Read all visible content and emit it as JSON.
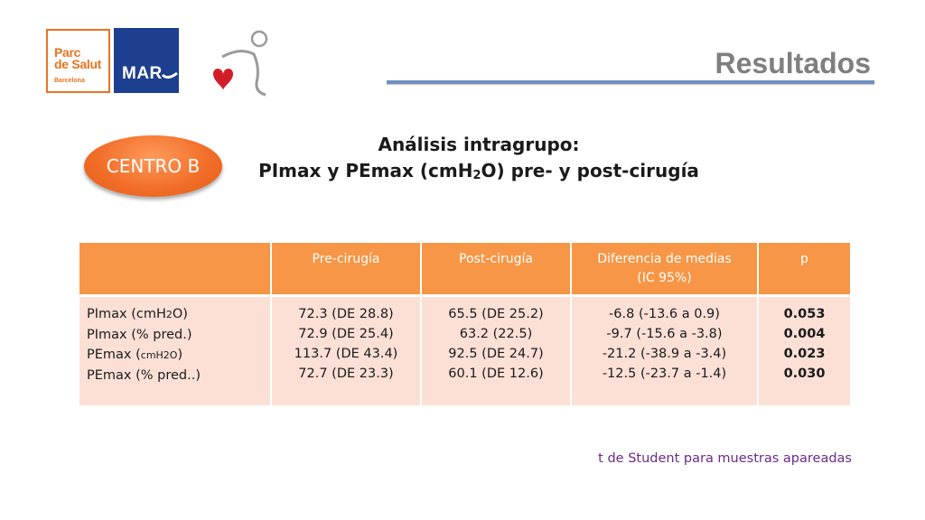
{
  "logos": {
    "parc": {
      "line1": "Parc",
      "line2": "de Salut",
      "line3": "Barcelona"
    },
    "mar": {
      "text": "MAR"
    },
    "heart_icon": "heart-figure-icon"
  },
  "title": "Resultados",
  "badge": "CENTRO B",
  "heading": {
    "line1": "Análisis intragrupo:",
    "line2_a": "PImax y PEmax (cmH",
    "line2_sub": "2",
    "line2_b": "O) pre- y post-cirugía"
  },
  "table": {
    "headers": [
      "",
      "Pre-cirugía",
      "Post-cirugía",
      "Diferencia de medias",
      "(IC 95%)",
      "p"
    ],
    "rows": {
      "labels": [
        "PImax (cmH2O)",
        "PImax (% pred.)",
        "PEmax (cmH2O)",
        "PEmax (% pred..)"
      ],
      "pre": [
        "72.3 (DE 28.8)",
        "72.9 (DE 25.4)",
        "113.7 (DE 43.4)",
        "72.7 (DE 23.3)"
      ],
      "post": [
        "65.5 (DE 25.2)",
        "63.2 (22.5)",
        "92.5 (DE 24.7)",
        "60.1 (DE 12.6)"
      ],
      "diff": [
        "-6.8 (-13.6 a 0.9)",
        "-9.7 (-15.6 a -3.8)",
        "-21.2 (-38.9 a -3.4)",
        "-12.5 (-23.7 a -1.4)"
      ],
      "p": [
        "0.053",
        "0.004",
        "0.023",
        "0.030"
      ]
    }
  },
  "footnote": "t de Student para muestras apareadas",
  "colors": {
    "header_fill": "#f79646",
    "body_fill": "#fce0d6",
    "badge_fill": "#f26f2a",
    "title_color": "#7f7f7f",
    "footnote_color": "#6b2a8a",
    "mar_blue": "#1d3f8f"
  }
}
